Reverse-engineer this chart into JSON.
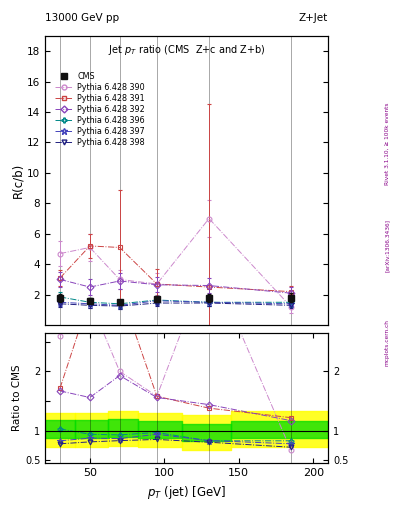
{
  "title_top": "13000 GeV pp",
  "title_top_right": "Z+Jet",
  "main_title": "Jet $p_T$ ratio (CMS  Z+c and Z+b)",
  "ylabel_main": "R(c/b)",
  "ylabel_ratio": "Ratio to CMS",
  "xlabel": "$p_T$ (jet) [GeV]",
  "right_label1": "Rivet 3.1.10, ≥ 100k events",
  "right_label2": "[arXiv:1306.3436]",
  "right_label3": "mcplots.cern.ch",
  "cms_x": [
    30,
    50,
    70,
    95,
    130,
    185
  ],
  "cms_y": [
    1.8,
    1.6,
    1.5,
    1.7,
    1.8,
    1.8
  ],
  "cms_yerr": [
    0.25,
    0.15,
    0.15,
    0.2,
    0.25,
    0.3
  ],
  "p390_x": [
    30,
    50,
    70,
    95,
    130,
    185
  ],
  "p390_y": [
    4.7,
    5.1,
    3.0,
    2.7,
    7.0,
    1.2
  ],
  "p390_yerr": [
    0.8,
    0.9,
    0.6,
    0.7,
    1.2,
    0.4
  ],
  "p391_x": [
    30,
    50,
    70,
    95,
    130,
    185
  ],
  "p391_y": [
    3.1,
    5.2,
    5.1,
    2.7,
    2.5,
    2.2
  ],
  "p391_yerr": [
    0.5,
    0.8,
    3.8,
    1.0,
    12.0,
    0.4
  ],
  "p392_x": [
    30,
    50,
    70,
    95,
    130,
    185
  ],
  "p392_y": [
    3.0,
    2.5,
    2.9,
    2.65,
    2.6,
    2.1
  ],
  "p392_yerr": [
    0.5,
    0.5,
    0.5,
    0.5,
    0.5,
    0.4
  ],
  "p396_x": [
    30,
    50,
    70,
    95,
    130,
    185
  ],
  "p396_y": [
    1.85,
    1.5,
    1.4,
    1.65,
    1.5,
    1.5
  ],
  "p396_yerr": [
    0.3,
    0.25,
    0.25,
    0.25,
    0.25,
    0.3
  ],
  "p397_x": [
    30,
    50,
    70,
    95,
    130,
    185
  ],
  "p397_y": [
    1.5,
    1.4,
    1.3,
    1.6,
    1.5,
    1.4
  ],
  "p397_yerr": [
    0.25,
    0.25,
    0.25,
    0.25,
    0.25,
    0.25
  ],
  "p398_x": [
    30,
    50,
    70,
    95,
    130,
    185
  ],
  "p398_y": [
    1.4,
    1.3,
    1.25,
    1.45,
    1.45,
    1.3
  ],
  "p398_yerr": [
    0.2,
    0.2,
    0.2,
    0.2,
    0.2,
    0.2
  ],
  "ratio390": [
    2.6,
    3.2,
    2.0,
    1.58,
    3.9,
    0.67
  ],
  "ratio391": [
    1.72,
    3.25,
    3.4,
    1.58,
    1.38,
    1.22
  ],
  "ratio392": [
    1.67,
    1.56,
    1.93,
    1.56,
    1.44,
    1.17
  ],
  "ratio396": [
    1.03,
    0.94,
    0.93,
    0.97,
    0.83,
    0.83
  ],
  "ratio397": [
    0.83,
    0.875,
    0.867,
    0.94,
    0.833,
    0.78
  ],
  "ratio398": [
    0.78,
    0.812,
    0.833,
    0.853,
    0.806,
    0.722
  ],
  "band_edges": [
    20,
    40,
    62,
    82,
    112,
    145,
    210
  ],
  "green_lo": [
    0.88,
    0.88,
    0.9,
    0.87,
    0.83,
    0.87,
    0.87
  ],
  "green_hi": [
    1.18,
    1.18,
    1.2,
    1.17,
    1.12,
    1.17,
    1.17
  ],
  "yellow_lo": [
    0.72,
    0.72,
    0.75,
    0.72,
    0.68,
    0.72,
    0.72
  ],
  "yellow_hi": [
    1.3,
    1.3,
    1.33,
    1.3,
    1.27,
    1.33,
    1.33
  ],
  "color390": "#cc88cc",
  "color391": "#cc4444",
  "color392": "#8844bb",
  "color396": "#008888",
  "color397": "#4444bb",
  "color398": "#202080",
  "color_cms": "#111111",
  "vlines_x": [
    30,
    50,
    70,
    95,
    130,
    185
  ],
  "xlim": [
    20,
    210
  ],
  "ylim_main": [
    0,
    19
  ],
  "ylim_ratio": [
    0.45,
    2.65
  ],
  "yticks_main": [
    2,
    4,
    6,
    8,
    10,
    12,
    14,
    16,
    18
  ],
  "yticks_ratio": [
    0.5,
    1.0,
    1.5,
    2.0,
    2.5
  ],
  "xticks": [
    50,
    100,
    150,
    200
  ]
}
